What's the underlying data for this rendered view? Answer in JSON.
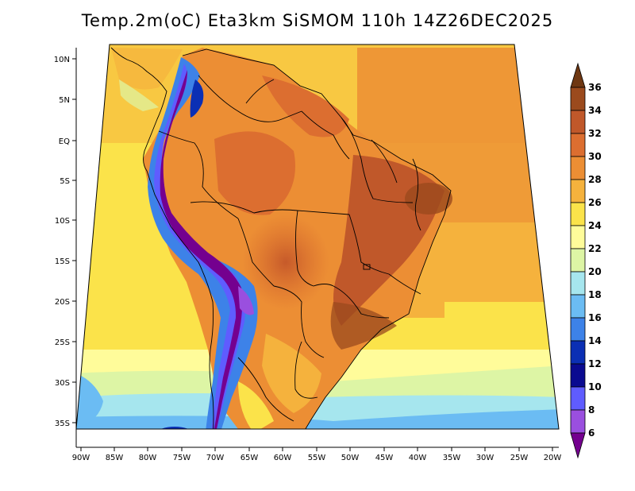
{
  "title": "Temp.2m(oC) Eta3km SiSMOM 110h 14Z26DEC2025",
  "map": {
    "lat_labels": [
      "10N",
      "5N",
      "EQ",
      "5S",
      "10S",
      "15S",
      "20S",
      "25S",
      "30S",
      "35S"
    ],
    "lon_labels": [
      "90W",
      "85W",
      "80W",
      "75W",
      "70W",
      "65W",
      "60W",
      "55W",
      "50W",
      "45W",
      "40W",
      "35W",
      "30W",
      "25W",
      "20W"
    ]
  },
  "colorbar": {
    "labels": [
      "36",
      "34",
      "32",
      "30",
      "28",
      "26",
      "24",
      "22",
      "20",
      "18",
      "16",
      "14",
      "12",
      "10",
      "8",
      "6"
    ],
    "colors": [
      "#6e3712",
      "#9b4a1d",
      "#c0582a",
      "#dc6e30",
      "#ec8e34",
      "#f5b23d",
      "#fbe34a",
      "#fffc9a",
      "#ddf5a5",
      "#a6e6ee",
      "#6bbcf3",
      "#3d82e8",
      "#0b2fb4",
      "#0a0a90",
      "#5f5cff",
      "#9a4fdf",
      "#74008f"
    ]
  }
}
